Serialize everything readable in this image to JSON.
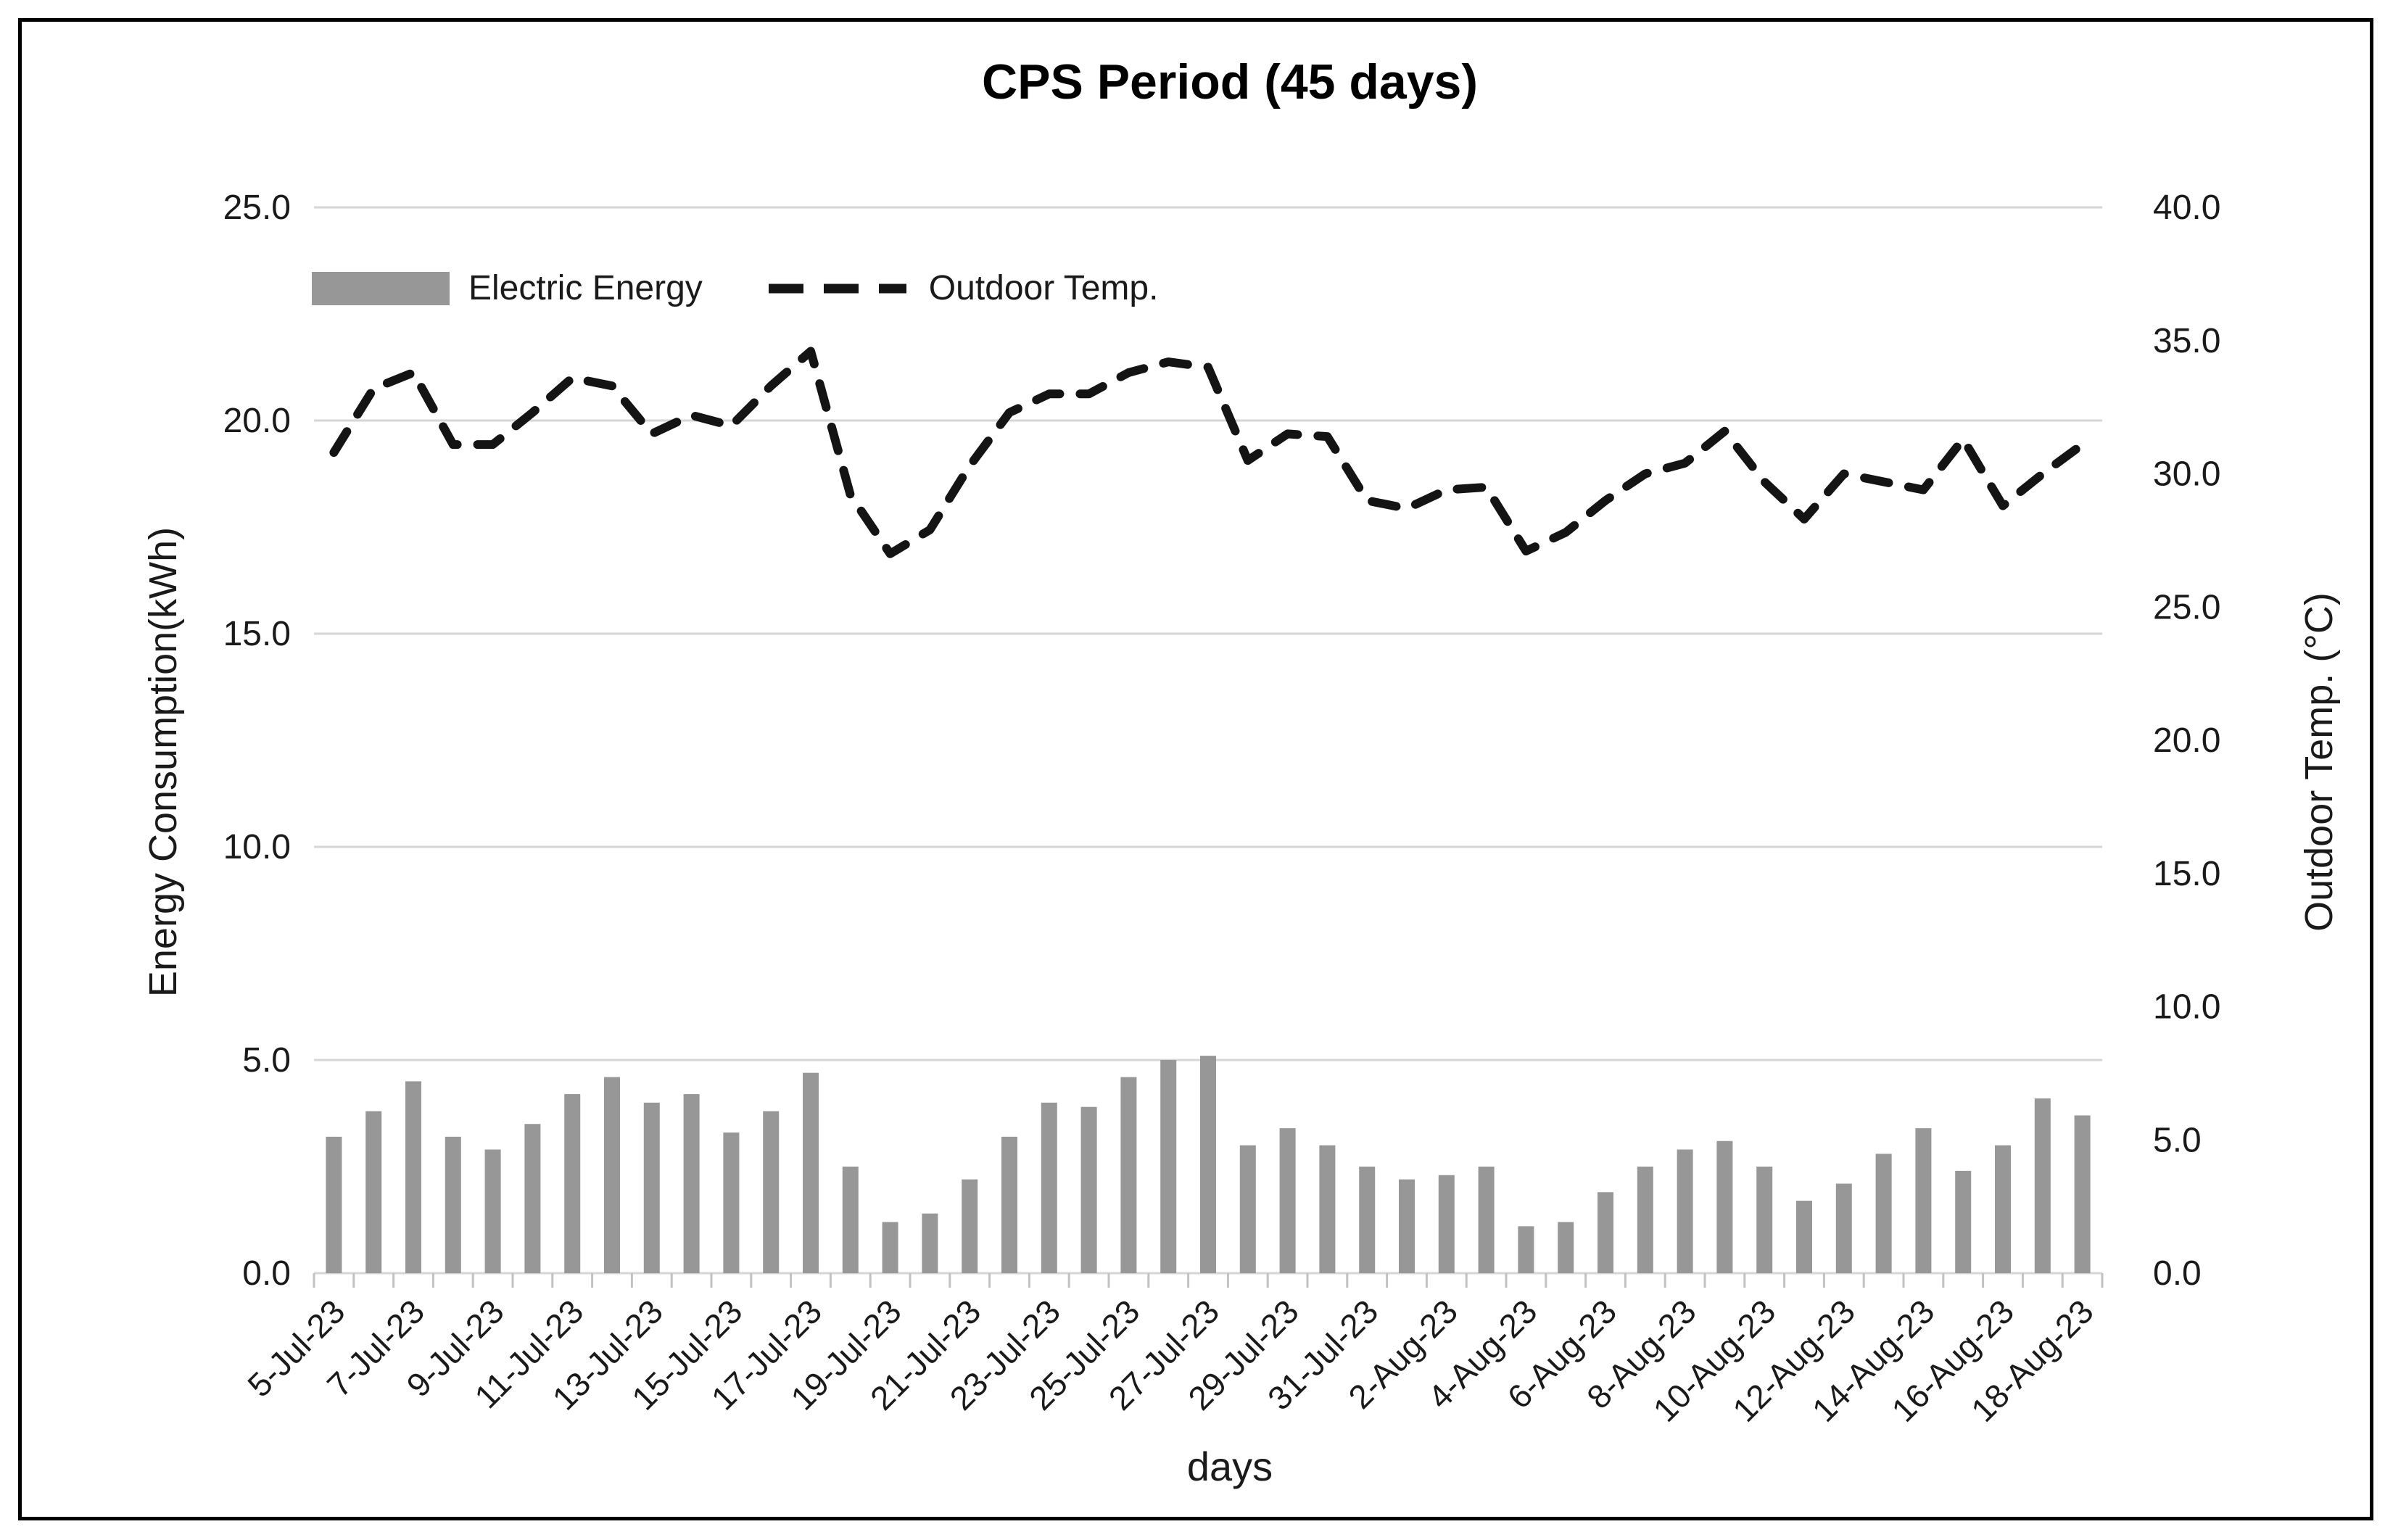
{
  "axes": {
    "left": {
      "ticks": [
        "25.0",
        "20.0",
        "15.0",
        "10.0",
        "5.0",
        "0.0"
      ]
    },
    "right": {
      "ticks": [
        "40.0",
        "35.0",
        "30.0",
        "25.0",
        "20.0",
        "15.0",
        "10.0",
        "5.0",
        "0.0"
      ]
    },
    "x": {
      "labels": [
        "5-Jul-23",
        "7-Jul-23",
        "9-Jul-23",
        "11-Jul-23",
        "13-Jul-23",
        "15-Jul-23",
        "17-Jul-23",
        "19-Jul-23",
        "21-Jul-23",
        "23-Jul-23",
        "25-Jul-23",
        "27-Jul-23",
        "29-Jul-23",
        "31-Jul-23",
        "2-Aug-23",
        "4-Aug-23",
        "6-Aug-23",
        "8-Aug-23",
        "10-Aug-23",
        "12-Aug-23",
        "14-Aug-23",
        "16-Aug-23",
        "18-Aug-23"
      ]
    }
  },
  "colors": {
    "bar": "#979797",
    "line": "#141414",
    "gridline": "#d6d6d6",
    "tick": "#c2c2c2",
    "text": "#1a1a1a"
  },
  "chart_data": {
    "type": "bar+line combo",
    "title": "CPS Period (45 days)",
    "xlabel": "days",
    "ylabel_left": "Energy Consumption(kWh)",
    "ylabel_right": "Outdoor Temp. (°C)",
    "ylim_left": [
      0,
      25
    ],
    "ylim_right": [
      0,
      40
    ],
    "grid": true,
    "legend_position": "inside top-left",
    "categories": [
      "5-Jul-23",
      "6-Jul-23",
      "7-Jul-23",
      "8-Jul-23",
      "9-Jul-23",
      "10-Jul-23",
      "11-Jul-23",
      "12-Jul-23",
      "13-Jul-23",
      "14-Jul-23",
      "15-Jul-23",
      "16-Jul-23",
      "17-Jul-23",
      "18-Jul-23",
      "19-Jul-23",
      "20-Jul-23",
      "21-Jul-23",
      "22-Jul-23",
      "23-Jul-23",
      "24-Jul-23",
      "25-Jul-23",
      "26-Jul-23",
      "27-Jul-23",
      "28-Jul-23",
      "29-Jul-23",
      "30-Jul-23",
      "31-Jul-23",
      "1-Aug-23",
      "2-Aug-23",
      "3-Aug-23",
      "4-Aug-23",
      "5-Aug-23",
      "6-Aug-23",
      "7-Aug-23",
      "8-Aug-23",
      "9-Aug-23",
      "10-Aug-23",
      "11-Aug-23",
      "12-Aug-23",
      "13-Aug-23",
      "14-Aug-23",
      "15-Aug-23",
      "16-Aug-23",
      "17-Aug-23",
      "18-Aug-23"
    ],
    "series": [
      {
        "name": "Electric Energy",
        "type": "bar",
        "axis": "left",
        "unit": "kWh",
        "values": [
          3.2,
          3.8,
          4.5,
          3.2,
          2.9,
          3.5,
          4.2,
          4.6,
          4.0,
          4.2,
          3.3,
          3.8,
          4.7,
          2.5,
          1.2,
          1.4,
          2.2,
          3.2,
          4.0,
          3.9,
          4.6,
          5.0,
          5.1,
          3.0,
          3.4,
          3.0,
          2.5,
          2.2,
          2.3,
          2.5,
          1.1,
          1.2,
          1.9,
          2.5,
          2.9,
          3.1,
          2.5,
          1.7,
          2.1,
          2.8,
          3.4,
          2.4,
          3.0,
          4.1,
          3.7
        ]
      },
      {
        "name": "Outdoor Temp.",
        "type": "line",
        "axis": "right",
        "unit": "°C",
        "dashed": true,
        "values": [
          30.8,
          33.2,
          33.8,
          31.1,
          31.1,
          32.3,
          33.6,
          33.3,
          31.5,
          32.2,
          31.8,
          33.3,
          34.6,
          29.2,
          27.0,
          27.9,
          30.3,
          32.3,
          33.0,
          33.0,
          33.8,
          34.2,
          34.0,
          30.5,
          31.5,
          31.4,
          29.0,
          28.7,
          29.4,
          29.5,
          27.1,
          27.8,
          29.0,
          30.0,
          30.4,
          31.6,
          29.7,
          28.3,
          30.0,
          29.7,
          29.4,
          31.3,
          28.8,
          30.0,
          31.1
        ]
      }
    ]
  }
}
